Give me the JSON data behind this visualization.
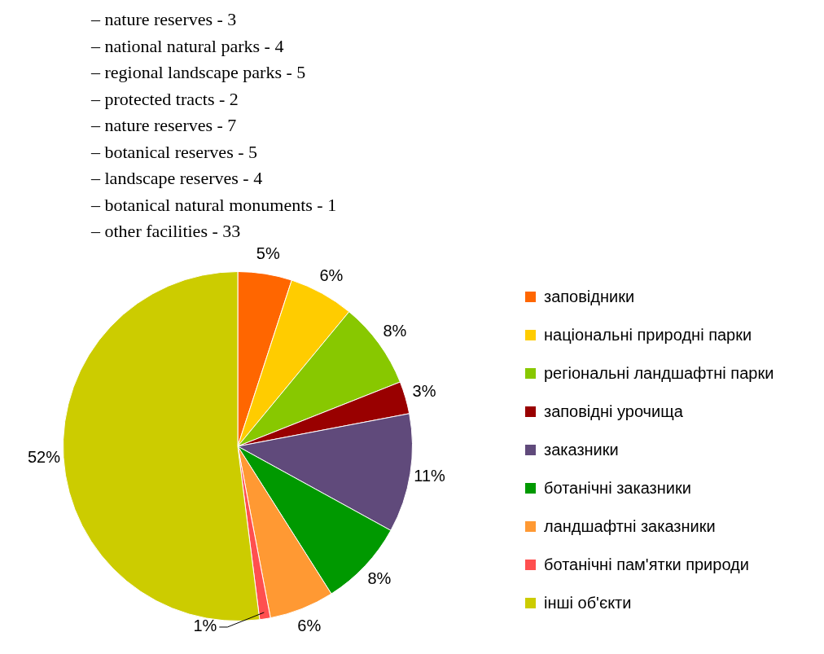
{
  "chart_data": {
    "type": "pie",
    "annotations": [
      "– nature reserves - 3",
      "– national natural parks - 4",
      "– regional landscape parks - 5",
      "– protected tracts - 2",
      "– nature reserves - 7",
      "– botanical reserves - 5",
      "– landscape reserves - 4",
      "– botanical natural monuments - 1",
      "– other facilities - 33"
    ],
    "categories": [
      "заповідники",
      "національні природні парки",
      "регіональні ландшафтні парки",
      "заповідні урочища",
      "заказники",
      "ботанічні заказники",
      "ландшафтні заказники",
      "ботанічні пам'ятки природи",
      "інші об'єкти"
    ],
    "values": [
      5,
      6,
      8,
      3,
      11,
      8,
      6,
      1,
      52
    ],
    "colors": [
      "#ff6600",
      "#ffcc00",
      "#88c800",
      "#990000",
      "#604a7b",
      "#009900",
      "#ff9933",
      "#ff4f4f",
      "#cccc00"
    ],
    "value_labels": [
      "5%",
      "6%",
      "8%",
      "3%",
      "11%",
      "8%",
      "6%",
      "1%",
      "52%"
    ],
    "legend": "right"
  }
}
